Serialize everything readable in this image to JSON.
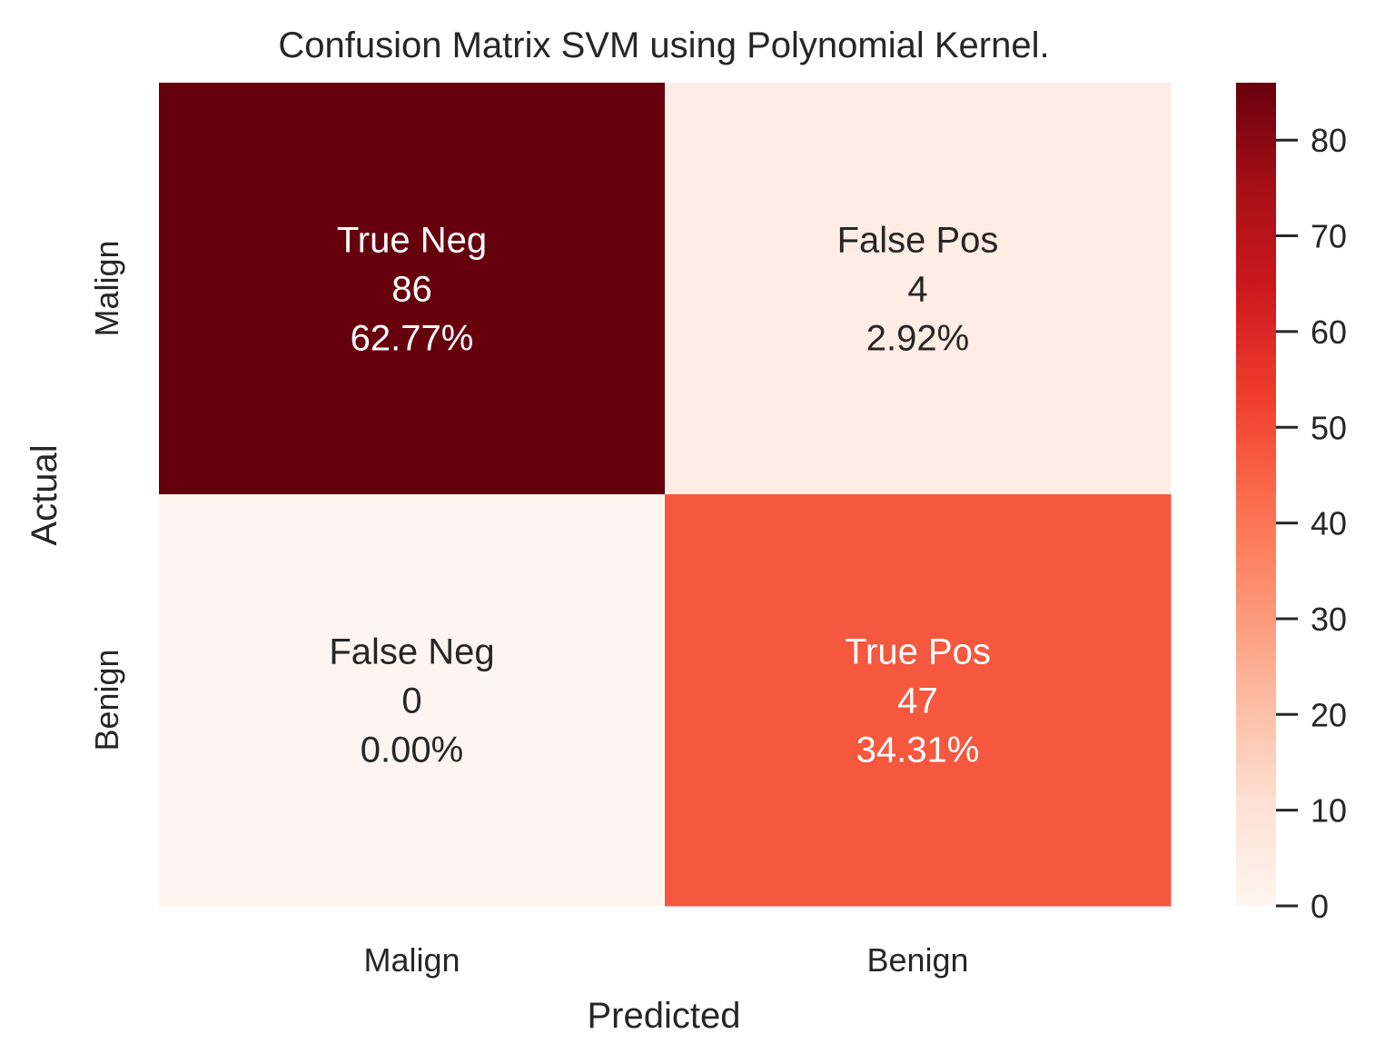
{
  "chart_data": {
    "type": "heatmap",
    "title": "Confusion Matrix SVM using Polynomial Kernel.",
    "xlabel": "Predicted",
    "ylabel": "Actual",
    "x_categories": [
      "Malign",
      "Benign"
    ],
    "y_categories": [
      "Malign",
      "Benign"
    ],
    "values": [
      [
        86,
        4
      ],
      [
        0,
        47
      ]
    ],
    "cell_names": [
      [
        "True Neg",
        "False Pos"
      ],
      [
        "False Neg",
        "True Pos"
      ]
    ],
    "cell_percents": [
      [
        "62.77%",
        "2.92%"
      ],
      [
        "0.00%",
        "34.31%"
      ]
    ],
    "colormap": "Reds",
    "vmin": 0,
    "vmax": 86,
    "colorbar_ticks": [
      0,
      10,
      20,
      30,
      40,
      50,
      60,
      70,
      80
    ],
    "colors": {
      "cell_86": "#67000d",
      "cell_4": "#ffece4",
      "cell_0": "#fff5f0",
      "cell_47": "#f5573f",
      "text_dark": "#262626",
      "text_light": "#ffffff"
    }
  }
}
